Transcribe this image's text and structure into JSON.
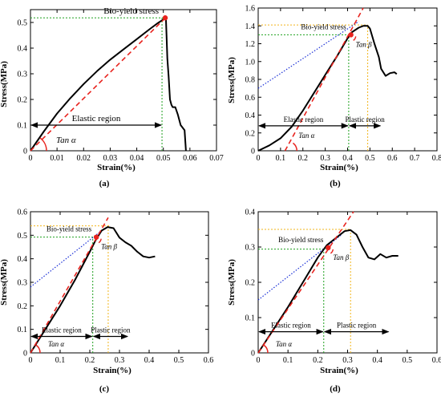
{
  "chart_data": [
    {
      "id": "a",
      "type": "line",
      "panel_label": "(a)",
      "xlabel": "Strain(%)",
      "ylabel": "Stress(MPa)",
      "xlim": [
        0,
        0.07
      ],
      "ylim": [
        0,
        0.55
      ],
      "xticks": [
        0,
        0.01,
        0.02,
        0.03,
        0.04,
        0.05,
        0.06,
        0.07
      ],
      "xtick_labels": [
        "0",
        "0.01",
        "0.02",
        "0.03",
        "0.04",
        "0.05",
        "0.06",
        "0.07"
      ],
      "yticks": [
        0,
        0.1,
        0.2,
        0.3,
        0.4,
        0.5
      ],
      "ytick_labels": [
        "0",
        "0.1",
        "0.2",
        "0.3",
        "0.4",
        "0.5"
      ],
      "curve": {
        "x": [
          0,
          0.005,
          0.01,
          0.015,
          0.02,
          0.025,
          0.03,
          0.035,
          0.04,
          0.045,
          0.048,
          0.0505,
          0.0508,
          0.051,
          0.0512,
          0.0515,
          0.052,
          0.0525,
          0.053,
          0.0535,
          0.0545,
          0.0555,
          0.0565,
          0.058,
          0.0585
        ],
        "y": [
          0,
          0.075,
          0.145,
          0.205,
          0.26,
          0.31,
          0.355,
          0.395,
          0.435,
          0.475,
          0.498,
          0.515,
          0.52,
          0.51,
          0.45,
          0.36,
          0.29,
          0.2,
          0.18,
          0.17,
          0.17,
          0.14,
          0.1,
          0.08,
          0.0
        ]
      },
      "elastic_line": {
        "x": [
          0,
          0.051
        ],
        "y": [
          0,
          0.52
        ]
      },
      "yield_point": {
        "x": 0.0507,
        "y": 0.518,
        "label": "Bio-yield stress"
      },
      "guide_h": {
        "x": [
          0,
          0.0507
        ],
        "y": 0.518,
        "color": "green"
      },
      "guide_v": {
        "x": 0.0495,
        "y": [
          0,
          0.518
        ],
        "color": "green"
      },
      "region_arrows": [
        {
          "label": "Elastic region",
          "x": [
            0,
            0.0495
          ],
          "y": 0.1
        }
      ],
      "angles": [
        {
          "label": "Tan α",
          "at": [
            0,
            0
          ],
          "kind": "alpha"
        }
      ]
    },
    {
      "id": "b",
      "type": "line",
      "panel_label": "(b)",
      "xlabel": "Strain(%)",
      "ylabel": "Stress(MPa)",
      "xlim": [
        0,
        0.8
      ],
      "ylim": [
        0,
        1.6
      ],
      "xticks": [
        0,
        0.1,
        0.2,
        0.3,
        0.4,
        0.5,
        0.6,
        0.7,
        0.8
      ],
      "xtick_labels": [
        "0",
        "0.1",
        "0.2",
        "0.3",
        "0.4",
        "0.5",
        "0.6",
        "0.7",
        "0.8"
      ],
      "yticks": [
        0,
        0.2,
        0.4,
        0.6,
        0.8,
        1.0,
        1.2,
        1.4,
        1.6
      ],
      "ytick_labels": [
        "0",
        "0.2",
        "0.4",
        "0.6",
        "0.8",
        "1.0",
        "1.2",
        "1.4",
        "1.6"
      ],
      "curve": {
        "x": [
          0,
          0.05,
          0.1,
          0.15,
          0.2,
          0.25,
          0.3,
          0.35,
          0.4,
          0.42,
          0.45,
          0.47,
          0.49,
          0.5,
          0.52,
          0.54,
          0.55,
          0.57,
          0.59,
          0.61,
          0.62
        ],
        "y": [
          0,
          0.06,
          0.14,
          0.27,
          0.45,
          0.65,
          0.85,
          1.05,
          1.26,
          1.33,
          1.38,
          1.4,
          1.4,
          1.37,
          1.2,
          1.05,
          0.92,
          0.84,
          0.87,
          0.88,
          0.86
        ]
      },
      "elastic_line": {
        "x": [
          0.12,
          0.47
        ],
        "y": [
          0,
          1.6
        ]
      },
      "tangent_line": {
        "x": [
          0,
          0.45
        ],
        "y": [
          0.7,
          1.45
        ]
      },
      "yield_point": {
        "x": 0.415,
        "y": 1.3,
        "label": "Bio-yield stress"
      },
      "guide_h": [
        {
          "x": [
            0,
            0.49
          ],
          "y": 1.41,
          "color": "orange"
        },
        {
          "x": [
            0,
            0.415
          ],
          "y": 1.3,
          "color": "green"
        }
      ],
      "guide_v": [
        {
          "x": 0.405,
          "y": [
            0,
            1.3
          ],
          "color": "green"
        },
        {
          "x": 0.49,
          "y": [
            0,
            1.41
          ],
          "color": "orange"
        }
      ],
      "region_arrows": [
        {
          "label": "Elastic region",
          "x": [
            0,
            0.405
          ],
          "y": 0.28
        },
        {
          "label": "Plastic region",
          "x": [
            0.405,
            0.55
          ],
          "y": 0.28,
          "open_right": true
        }
      ],
      "angles": [
        {
          "label": "Tan α",
          "at": [
            0.13,
            0
          ],
          "kind": "alpha"
        },
        {
          "label": "Tan β",
          "at": [
            0.415,
            1.3
          ],
          "kind": "beta"
        }
      ]
    },
    {
      "id": "c",
      "type": "line",
      "panel_label": "(c)",
      "xlabel": "Strain(%)",
      "ylabel": "Stress(MPa)",
      "xlim": [
        0,
        0.6
      ],
      "ylim": [
        0,
        0.6
      ],
      "xticks": [
        0,
        0.1,
        0.2,
        0.3,
        0.4,
        0.5,
        0.6
      ],
      "xtick_labels": [
        "0",
        "0.1",
        "0.2",
        "0.3",
        "0.4",
        "0.5",
        "0.6"
      ],
      "yticks": [
        0,
        0.1,
        0.2,
        0.3,
        0.4,
        0.5,
        0.6
      ],
      "ytick_labels": [
        "0",
        "0.1",
        "0.2",
        "0.3",
        "0.4",
        "0.5",
        "0.6"
      ],
      "curve": {
        "x": [
          0,
          0.05,
          0.1,
          0.15,
          0.2,
          0.22,
          0.24,
          0.26,
          0.28,
          0.3,
          0.32,
          0.34,
          0.36,
          0.38,
          0.4,
          0.42
        ],
        "y": [
          0,
          0.1,
          0.2,
          0.31,
          0.43,
          0.48,
          0.52,
          0.535,
          0.53,
          0.49,
          0.47,
          0.455,
          0.43,
          0.41,
          0.405,
          0.41
        ]
      },
      "elastic_line": {
        "x": [
          0,
          0.262
        ],
        "y": [
          0,
          0.575
        ]
      },
      "tangent_line": {
        "x": [
          0,
          0.25
        ],
        "y": [
          0.28,
          0.53
        ]
      },
      "yield_point": {
        "x": 0.222,
        "y": 0.492,
        "label": "Bio-yield stress"
      },
      "guide_h": [
        {
          "x": [
            0,
            0.27
          ],
          "y": 0.54,
          "color": "orange"
        },
        {
          "x": [
            0,
            0.222
          ],
          "y": 0.492,
          "color": "green"
        }
      ],
      "guide_v": [
        {
          "x": 0.21,
          "y": [
            0,
            0.492
          ],
          "color": "green"
        },
        {
          "x": 0.262,
          "y": [
            0,
            0.54
          ],
          "color": "orange"
        }
      ],
      "region_arrows": [
        {
          "label": "Elastic region",
          "x": [
            0,
            0.21
          ],
          "y": 0.07
        },
        {
          "label": "Plastic region",
          "x": [
            0.21,
            0.33
          ],
          "y": 0.07,
          "open_right": true
        }
      ],
      "angles": [
        {
          "label": "Tan α",
          "at": [
            0,
            0
          ],
          "kind": "alpha"
        },
        {
          "label": "Tan β",
          "at": [
            0.222,
            0.492
          ],
          "kind": "beta"
        }
      ]
    },
    {
      "id": "d",
      "type": "line",
      "panel_label": "(d)",
      "xlabel": "Strain(%)",
      "ylabel": "Stress(MPa)",
      "xlim": [
        0,
        0.6
      ],
      "ylim": [
        0,
        0.4
      ],
      "xticks": [
        0,
        0.1,
        0.2,
        0.3,
        0.4,
        0.5,
        0.6
      ],
      "xtick_labels": [
        "0",
        "0.1",
        "0.2",
        "0.3",
        "0.4",
        "0.5",
        "0.6"
      ],
      "yticks": [
        0,
        0.1,
        0.2,
        0.3,
        0.4
      ],
      "ytick_labels": [
        "0",
        "0.1",
        "0.2",
        "0.3",
        "0.4"
      ],
      "curve": {
        "x": [
          0,
          0.05,
          0.1,
          0.15,
          0.2,
          0.23,
          0.26,
          0.29,
          0.31,
          0.33,
          0.35,
          0.37,
          0.39,
          0.41,
          0.43,
          0.45,
          0.47
        ],
        "y": [
          0,
          0.065,
          0.13,
          0.2,
          0.27,
          0.305,
          0.325,
          0.345,
          0.348,
          0.335,
          0.3,
          0.27,
          0.265,
          0.28,
          0.27,
          0.275,
          0.275
        ]
      },
      "elastic_line": {
        "x": [
          0,
          0.32
        ],
        "y": [
          0,
          0.4
        ]
      },
      "tangent_line": {
        "x": [
          0,
          0.28
        ],
        "y": [
          0.15,
          0.335
        ]
      },
      "yield_point": {
        "x": 0.235,
        "y": 0.298,
        "label": "Bio-yield stress"
      },
      "guide_h": [
        {
          "x": [
            0,
            0.31
          ],
          "y": 0.35,
          "color": "orange"
        },
        {
          "x": [
            0,
            0.235
          ],
          "y": 0.294,
          "color": "green"
        }
      ],
      "guide_v": [
        {
          "x": 0.22,
          "y": [
            0,
            0.294
          ],
          "color": "green"
        },
        {
          "x": 0.31,
          "y": [
            0,
            0.35
          ],
          "color": "orange"
        }
      ],
      "region_arrows": [
        {
          "label": "Elastic region",
          "x": [
            0,
            0.22
          ],
          "y": 0.06
        },
        {
          "label": "Plastic region",
          "x": [
            0.22,
            0.44
          ],
          "y": 0.06,
          "open_right": true
        }
      ],
      "angles": [
        {
          "label": "Tan α",
          "at": [
            0,
            0
          ],
          "kind": "alpha"
        },
        {
          "label": "Tan β",
          "at": [
            0.235,
            0.298
          ],
          "kind": "beta"
        }
      ]
    }
  ],
  "colors": {
    "curve": "#000000",
    "elastic_line": "#e8231e",
    "tangent_line": "#1a2fd6",
    "green_guide": "#1ea01e",
    "orange_guide": "#f2b51a",
    "yield_point": "#e8231e",
    "angle_arc": "#e8231e"
  }
}
